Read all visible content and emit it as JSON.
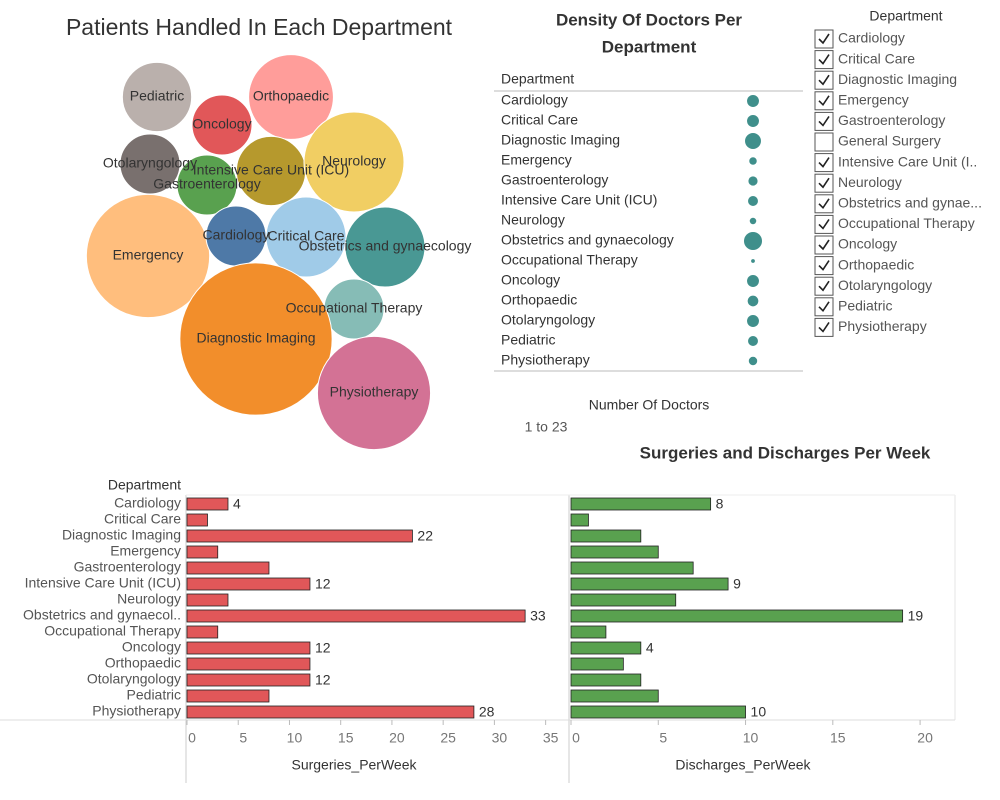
{
  "chart_data": [
    {
      "type": "bubble",
      "title": "Patients Handled In Each Department",
      "categories": [
        "Pediatric",
        "Oncology",
        "Orthopaedic",
        "Otolaryngology",
        "Intensive Care Unit (ICU)",
        "Neurology",
        "Gastroenterology",
        "Emergency",
        "Cardiology",
        "Critical Care",
        "Obstetrics and gynaecology",
        "Occupational Therapy",
        "Diagnostic Imaging",
        "Physiotherapy"
      ],
      "values": [
        12,
        9,
        18,
        9,
        12,
        25,
        9,
        38,
        9,
        16,
        16,
        9,
        58,
        32
      ],
      "colors": [
        "#bab0ac",
        "#e15759",
        "#ff9d9a",
        "#79706e",
        "#b6992d",
        "#f1ce63",
        "#59a14f",
        "#ffbe7d",
        "#4e79a7",
        "#a0cbe8",
        "#499894",
        "#86bcb6",
        "#f28e2b",
        "#d37295"
      ]
    },
    {
      "type": "dot",
      "title": [
        "Density Of Doctors Per",
        "Department"
      ],
      "row_header": "Department",
      "categories": [
        "Cardiology",
        "Critical Care",
        "Diagnostic Imaging",
        "Emergency",
        "Gastroenterology",
        "Intensive Care Unit (ICU)",
        "Neurology",
        "Obstetrics and gynaecology",
        "Occupational Therapy",
        "Oncology",
        "Orthopaedic",
        "Otolaryngology",
        "Pediatric",
        "Physiotherapy"
      ],
      "values": [
        10,
        10,
        18,
        4,
        6,
        7,
        3,
        23,
        1,
        10,
        8,
        10,
        7,
        5
      ],
      "color": "#3f8f8b",
      "size_legend": {
        "title": "Number Of Doctors",
        "label": "1 to 23"
      }
    },
    {
      "type": "bar",
      "orientation": "horizontal",
      "title": "Surgeries and Discharges Per Week",
      "row_header": "Department",
      "categories": [
        "Cardiology",
        "Critical Care",
        "Diagnostic Imaging",
        "Emergency",
        "Gastroenterology",
        "Intensive Care Unit (ICU)",
        "Neurology",
        "Obstetrics and gynaecol..",
        "Occupational Therapy",
        "Oncology",
        "Orthopaedic",
        "Otolaryngology",
        "Pediatric",
        "Physiotherapy"
      ],
      "series": [
        {
          "name": "Surgeries_PerWeek",
          "color": "#e15759",
          "values": [
            4,
            2,
            22,
            3,
            8,
            12,
            4,
            33,
            3,
            12,
            12,
            12,
            8,
            28
          ],
          "show_labels": [
            true,
            false,
            true,
            false,
            false,
            true,
            false,
            true,
            false,
            true,
            false,
            true,
            false,
            true
          ],
          "xlim": [
            0,
            36.5
          ],
          "xticks": [
            0,
            5,
            10,
            15,
            20,
            25,
            30,
            35
          ]
        },
        {
          "name": "Discharges_PerWeek",
          "color": "#59a14f",
          "values": [
            8,
            1,
            4,
            5,
            7,
            9,
            6,
            19,
            2,
            4,
            3,
            4,
            5,
            10
          ],
          "show_labels": [
            true,
            false,
            false,
            false,
            false,
            true,
            false,
            true,
            false,
            true,
            false,
            false,
            false,
            true
          ],
          "xlim": [
            0,
            22
          ],
          "xticks": [
            0,
            5,
            10,
            15,
            20
          ]
        }
      ]
    }
  ],
  "filter": {
    "title": "Department",
    "items": [
      {
        "label": "Cardiology",
        "checked": true
      },
      {
        "label": "Critical Care",
        "checked": true
      },
      {
        "label": "Diagnostic Imaging",
        "checked": true
      },
      {
        "label": "Emergency",
        "checked": true
      },
      {
        "label": "Gastroenterology",
        "checked": true
      },
      {
        "label": "General Surgery",
        "checked": false
      },
      {
        "label": "Intensive Care Unit (I..",
        "checked": true
      },
      {
        "label": "Neurology",
        "checked": true
      },
      {
        "label": "Obstetrics and gynae...",
        "checked": true
      },
      {
        "label": "Occupational Therapy",
        "checked": true
      },
      {
        "label": "Oncology",
        "checked": true
      },
      {
        "label": "Orthopaedic",
        "checked": true
      },
      {
        "label": "Otolaryngology",
        "checked": true
      },
      {
        "label": "Pediatric",
        "checked": true
      },
      {
        "label": "Physiotherapy",
        "checked": true
      }
    ]
  }
}
